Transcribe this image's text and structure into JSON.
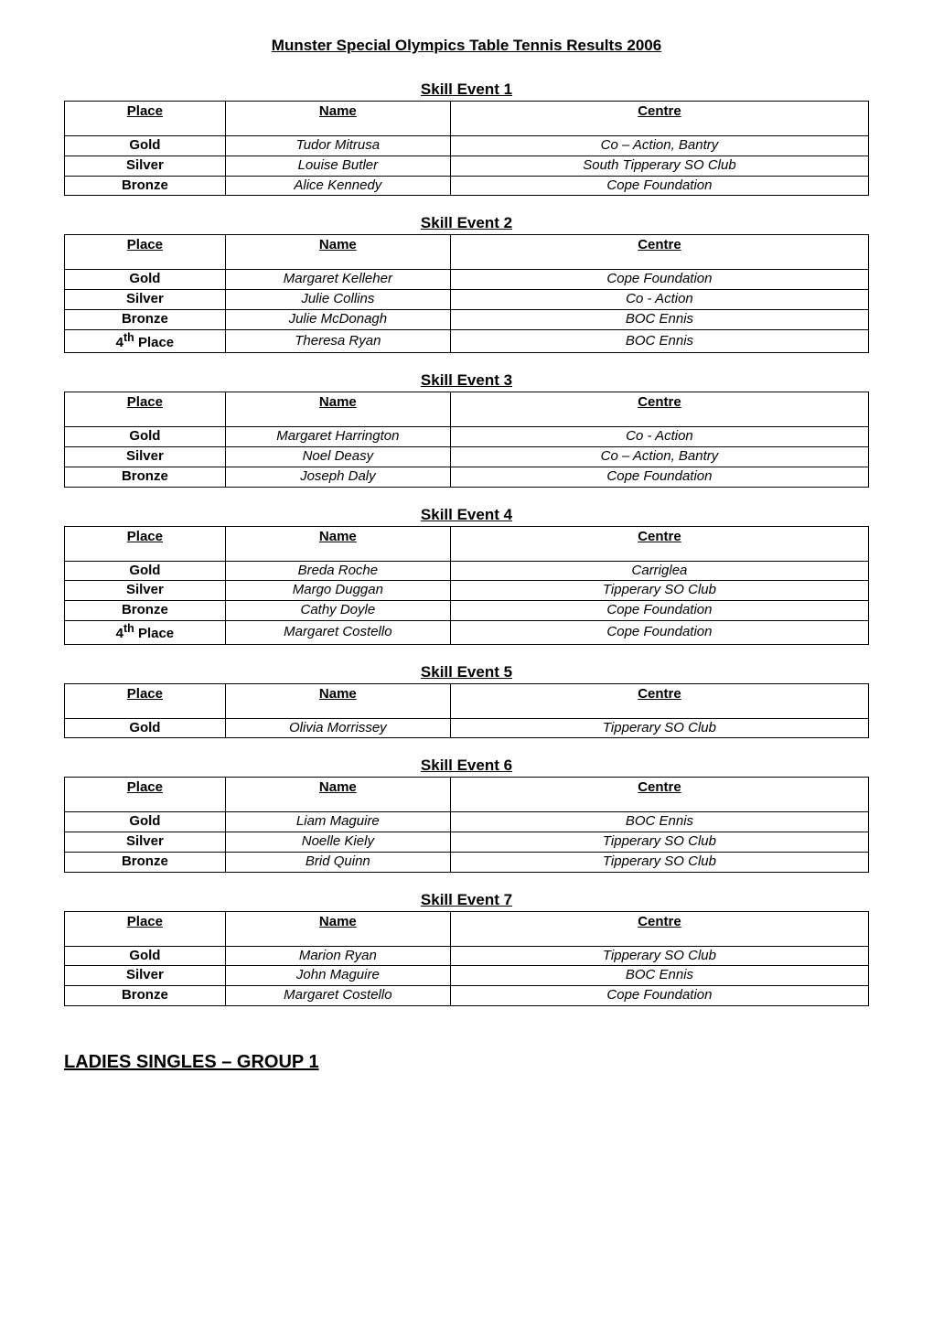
{
  "mainTitle": "Munster Special Olympics Table Tennis Results 2006",
  "headers": {
    "place": "Place",
    "name": "Name",
    "centre": "Centre"
  },
  "events": [
    {
      "title": "Skill Event 1",
      "rows": [
        {
          "place": "Gold",
          "name": "Tudor Mitrusa",
          "centre": "Co – Action, Bantry"
        },
        {
          "place": "Silver",
          "name": "Louise Butler",
          "centre": "South Tipperary SO Club"
        },
        {
          "place": "Bronze",
          "name": "Alice Kennedy",
          "centre": "Cope Foundation"
        }
      ]
    },
    {
      "title": "Skill Event 2",
      "rows": [
        {
          "place": "Gold",
          "name": "Margaret Kelleher",
          "centre": "Cope Foundation"
        },
        {
          "place": "Silver",
          "name": "Julie Collins",
          "centre": "Co - Action"
        },
        {
          "place": "Bronze",
          "name": "Julie McDonagh",
          "centre": "BOC Ennis"
        },
        {
          "place": "4th Place",
          "name": "Theresa Ryan",
          "centre": "BOC Ennis",
          "placeHtml": "4<sup>th</sup> Place"
        }
      ]
    },
    {
      "title": "Skill Event 3",
      "rows": [
        {
          "place": "Gold",
          "name": "Margaret Harrington",
          "centre": "Co - Action"
        },
        {
          "place": "Silver",
          "name": "Noel Deasy",
          "centre": "Co – Action, Bantry"
        },
        {
          "place": "Bronze",
          "name": "Joseph Daly",
          "centre": "Cope Foundation"
        }
      ]
    },
    {
      "title": "Skill Event 4",
      "rows": [
        {
          "place": "Gold",
          "name": "Breda Roche",
          "centre": "Carriglea"
        },
        {
          "place": "Silver",
          "name": "Margo Duggan",
          "centre": "Tipperary SO Club"
        },
        {
          "place": "Bronze",
          "name": "Cathy Doyle",
          "centre": "Cope Foundation"
        },
        {
          "place": "4th Place",
          "name": "Margaret Costello",
          "centre": "Cope Foundation",
          "placeHtml": "4<sup>th</sup> Place"
        }
      ]
    },
    {
      "title": "Skill Event 5",
      "rows": [
        {
          "place": "Gold",
          "name": "Olivia Morrissey",
          "centre": "Tipperary SO Club"
        }
      ]
    },
    {
      "title": "Skill Event 6",
      "rows": [
        {
          "place": "Gold",
          "name": "Liam Maguire",
          "centre": "BOC Ennis"
        },
        {
          "place": "Silver",
          "name": "Noelle Kiely",
          "centre": "Tipperary SO Club"
        },
        {
          "place": "Bronze",
          "name": "Brid Quinn",
          "centre": "Tipperary SO Club"
        }
      ]
    },
    {
      "title": "Skill Event 7",
      "rows": [
        {
          "place": "Gold",
          "name": "Marion Ryan",
          "centre": "Tipperary SO Club"
        },
        {
          "place": "Silver",
          "name": "John Maguire",
          "centre": "BOC Ennis"
        },
        {
          "place": "Bronze",
          "name": "Margaret Costello",
          "centre": "Cope Foundation"
        }
      ]
    }
  ],
  "sectionTitle": "LADIES SINGLES – GROUP 1"
}
